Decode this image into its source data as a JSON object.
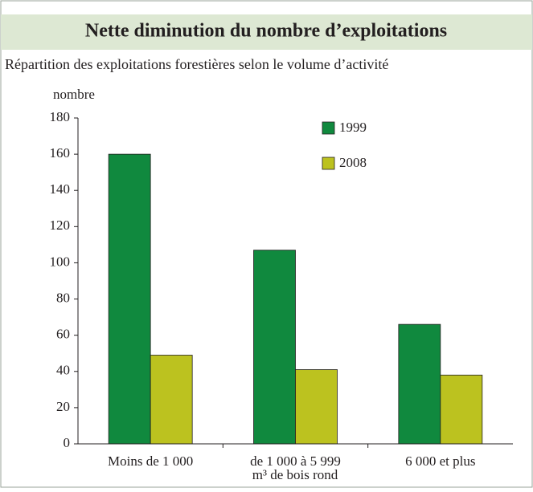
{
  "chart_data": {
    "type": "bar",
    "title": "Nette diminution du nombre d’exploitations",
    "subtitle": "Répartition des exploitations forestières selon le volume d’activité",
    "y_label": "nombre",
    "x_label": "m³ de bois rond",
    "categories": [
      "Moins de 1 000",
      "de 1 000 à 5 999",
      "6 000 et plus"
    ],
    "series": [
      {
        "name": "1999",
        "color": "#10893e",
        "values": [
          160,
          107,
          66
        ]
      },
      {
        "name": "2008",
        "color": "#bcc21f",
        "values": [
          49,
          41,
          38
        ]
      }
    ],
    "ylim": [
      0,
      180
    ],
    "yticks": [
      0,
      20,
      40,
      60,
      80,
      100,
      120,
      140,
      160,
      180
    ]
  }
}
